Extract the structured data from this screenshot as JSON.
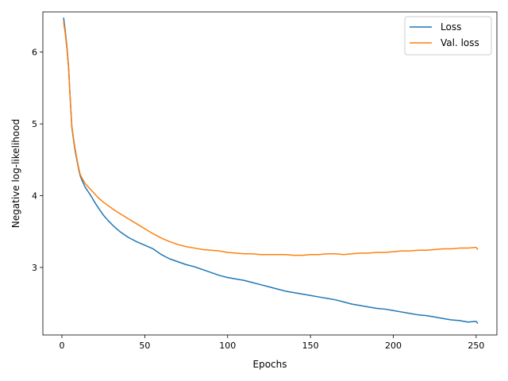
{
  "chart_data": {
    "type": "line",
    "title": "",
    "xlabel": "Epochs",
    "ylabel": "Negative log-likelihood",
    "xlim": [
      -11.5,
      262.5
    ],
    "ylim": [
      2.06,
      6.56
    ],
    "xticks": [
      0,
      50,
      100,
      150,
      200,
      250
    ],
    "yticks": [
      3,
      4,
      5,
      6
    ],
    "grid": false,
    "legend_position": "top-right",
    "series": [
      {
        "name": "Loss",
        "color": "#1f77b4",
        "x": [
          1,
          2,
          3,
          4,
          5,
          6,
          7,
          8,
          9,
          10,
          11,
          12,
          14,
          16,
          18,
          20,
          22,
          25,
          28,
          31,
          35,
          40,
          45,
          50,
          55,
          60,
          65,
          70,
          75,
          80,
          85,
          90,
          95,
          100,
          105,
          110,
          115,
          120,
          125,
          130,
          135,
          140,
          145,
          150,
          155,
          160,
          165,
          170,
          175,
          180,
          185,
          190,
          195,
          200,
          205,
          210,
          215,
          220,
          225,
          230,
          235,
          240,
          245,
          250,
          251
        ],
        "y": [
          6.48,
          6.3,
          6.08,
          5.8,
          5.35,
          4.95,
          4.78,
          4.62,
          4.5,
          4.38,
          4.28,
          4.22,
          4.12,
          4.05,
          3.98,
          3.9,
          3.83,
          3.73,
          3.65,
          3.58,
          3.5,
          3.42,
          3.36,
          3.31,
          3.26,
          3.18,
          3.12,
          3.08,
          3.04,
          3.01,
          2.97,
          2.93,
          2.89,
          2.86,
          2.84,
          2.82,
          2.79,
          2.76,
          2.73,
          2.7,
          2.67,
          2.65,
          2.63,
          2.61,
          2.59,
          2.57,
          2.55,
          2.52,
          2.49,
          2.47,
          2.45,
          2.43,
          2.42,
          2.4,
          2.38,
          2.36,
          2.34,
          2.33,
          2.31,
          2.29,
          2.27,
          2.26,
          2.24,
          2.25,
          2.22
        ]
      },
      {
        "name": "Val. loss",
        "color": "#ff7f0e",
        "x": [
          1,
          2,
          3,
          4,
          5,
          6,
          7,
          8,
          9,
          10,
          11,
          12,
          14,
          16,
          18,
          20,
          22,
          25,
          28,
          31,
          35,
          40,
          45,
          50,
          55,
          60,
          65,
          70,
          75,
          80,
          85,
          90,
          95,
          100,
          105,
          110,
          115,
          120,
          125,
          130,
          135,
          140,
          145,
          150,
          155,
          160,
          165,
          170,
          175,
          180,
          185,
          190,
          195,
          200,
          205,
          210,
          215,
          220,
          225,
          230,
          235,
          240,
          245,
          250,
          251
        ],
        "y": [
          6.42,
          6.26,
          6.05,
          5.78,
          5.35,
          4.97,
          4.8,
          4.65,
          4.52,
          4.4,
          4.3,
          4.25,
          4.17,
          4.12,
          4.07,
          4.02,
          3.97,
          3.91,
          3.86,
          3.81,
          3.75,
          3.68,
          3.61,
          3.54,
          3.47,
          3.41,
          3.36,
          3.32,
          3.29,
          3.27,
          3.25,
          3.24,
          3.23,
          3.21,
          3.2,
          3.19,
          3.19,
          3.18,
          3.18,
          3.18,
          3.18,
          3.17,
          3.17,
          3.18,
          3.18,
          3.19,
          3.19,
          3.18,
          3.19,
          3.2,
          3.2,
          3.21,
          3.21,
          3.22,
          3.23,
          3.23,
          3.24,
          3.24,
          3.25,
          3.26,
          3.26,
          3.27,
          3.27,
          3.28,
          3.25
        ]
      }
    ]
  }
}
